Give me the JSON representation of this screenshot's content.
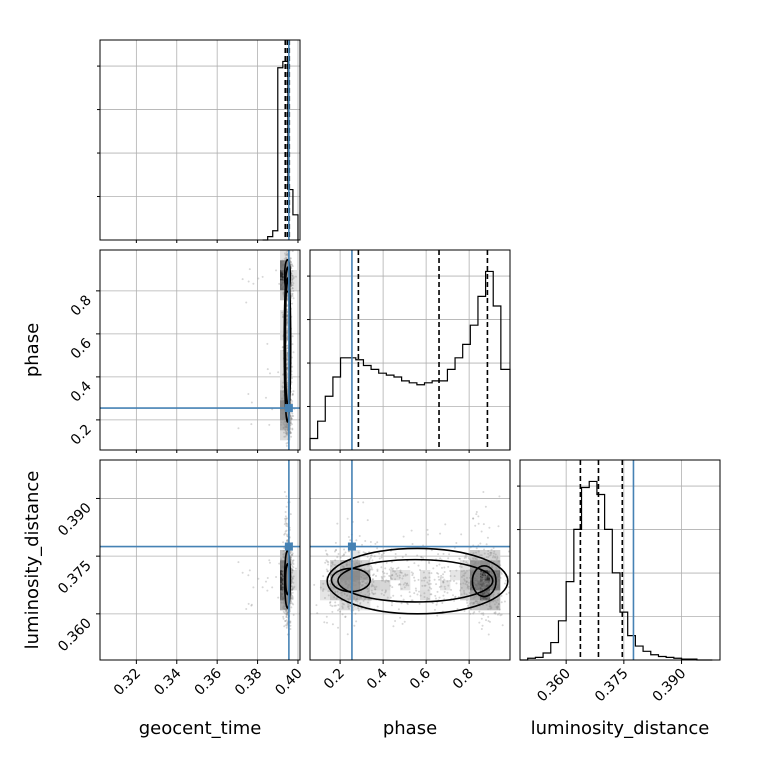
{
  "chart_data": {
    "type": "corner",
    "grid": true,
    "colors": {
      "truth": "#4682b4",
      "hist": "#000000",
      "points": "#8c8c8c"
    },
    "parameters": [
      "geocent_time",
      "phase",
      "luminosity_distance"
    ],
    "axis_labels": {
      "geocent_time": "geocent_time",
      "phase": "phase",
      "luminosity_distance": "luminosity_distance"
    },
    "ranges": {
      "geocent_time": [
        0.302,
        0.401
      ],
      "phase": [
        0.06,
        0.99
      ],
      "luminosity_distance": [
        0.348,
        0.4
      ]
    },
    "ticks": {
      "geocent_time": [
        "0.32",
        "0.34",
        "0.36",
        "0.38",
        "0.40"
      ],
      "phase": [
        "0.2",
        "0.4",
        "0.6",
        "0.8"
      ],
      "luminosity_distance": [
        "0.360",
        "0.375",
        "0.390"
      ]
    },
    "truths": {
      "geocent_time": 0.3955,
      "phase": 0.255,
      "luminosity_distance": 0.3775
    },
    "quantiles": {
      "geocent_time": [
        0.3937,
        0.3947,
        0.3957
      ],
      "phase": [
        0.285,
        0.66,
        0.885
      ],
      "luminosity_distance": [
        0.3637,
        0.3684,
        0.3746
      ]
    },
    "histograms": {
      "geocent_time": {
        "edges": [
          0.3825,
          0.385,
          0.3875,
          0.39,
          0.3925,
          0.395,
          0.3975,
          0.4
        ],
        "counts": [
          0,
          8,
          22,
          410,
          425,
          120,
          60
        ]
      },
      "phase": {
        "edges": [
          0.06,
          0.0955,
          0.131,
          0.1665,
          0.202,
          0.2375,
          0.273,
          0.3085,
          0.344,
          0.3795,
          0.415,
          0.4505,
          0.486,
          0.5215,
          0.557,
          0.5925,
          0.628,
          0.6635,
          0.699,
          0.7345,
          0.77,
          0.8055,
          0.841,
          0.8765,
          0.912,
          0.9475,
          0.99
        ],
        "counts": [
          6,
          15,
          28,
          38,
          48,
          48,
          47,
          44,
          42,
          40,
          39,
          38,
          36,
          35,
          34,
          35,
          36,
          36,
          42,
          48,
          55,
          65,
          80,
          93,
          75,
          42
        ]
      },
      "luminosity_distance": {
        "edges": [
          0.348,
          0.35,
          0.352,
          0.354,
          0.356,
          0.358,
          0.36,
          0.362,
          0.364,
          0.366,
          0.368,
          0.37,
          0.372,
          0.374,
          0.376,
          0.378,
          0.38,
          0.382,
          0.384,
          0.386,
          0.388,
          0.39,
          0.392,
          0.394,
          0.396,
          0.398
        ],
        "counts": [
          0,
          2,
          3,
          8,
          20,
          45,
          90,
          150,
          198,
          205,
          190,
          150,
          100,
          55,
          28,
          16,
          10,
          6,
          4,
          3,
          2,
          1,
          1,
          0,
          0
        ]
      }
    }
  }
}
